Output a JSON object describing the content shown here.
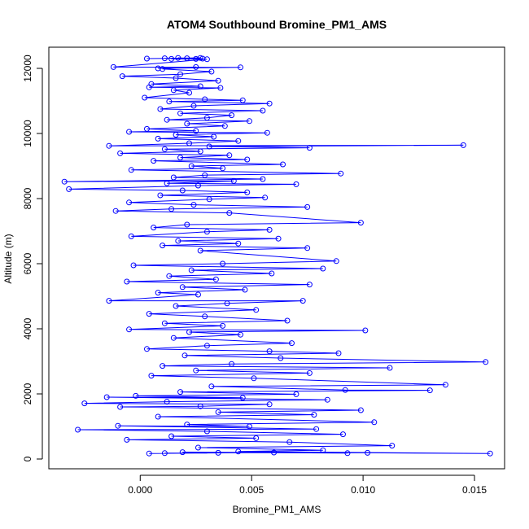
{
  "chart_data": {
    "type": "line",
    "title": "ATOM4 Southbound Bromine_PM1_AMS",
    "xlabel": "Bromine_PM1_AMS",
    "ylabel": "Altitude (m)",
    "xlim": [
      -0.0041,
      0.01635
    ],
    "ylim": [
      -300,
      12650
    ],
    "xticks": [
      0.0,
      0.005,
      0.01,
      0.015
    ],
    "xtick_labels": [
      "0.000",
      "0.005",
      "0.010",
      "0.015"
    ],
    "yticks": [
      0,
      2000,
      4000,
      6000,
      8000,
      10000,
      12000
    ],
    "ytick_labels": [
      "0",
      "2000",
      "4000",
      "6000",
      "8000",
      "10000",
      "12000"
    ],
    "grid": false,
    "legend": "none",
    "marker": "open-circle",
    "colors": {
      "series": "#0000ff",
      "axes": "#000000",
      "background": "#ffffff"
    },
    "series": [
      {
        "points": [
          [
            0.0003,
            12300
          ],
          [
            0.0027,
            12320
          ],
          [
            0.0011,
            12310
          ],
          [
            0.0025,
            12290
          ],
          [
            0.0017,
            12320
          ],
          [
            0.0028,
            12300
          ],
          [
            0.0021,
            12310
          ],
          [
            0.0014,
            12290
          ],
          [
            0.003,
            12280
          ],
          [
            -0.0012,
            12040
          ],
          [
            0.0045,
            12030
          ],
          [
            0.0008,
            12000
          ],
          [
            0.0025,
            12040
          ],
          [
            0.001,
            11980
          ],
          [
            0.0032,
            11900
          ],
          [
            0.0018,
            11820
          ],
          [
            -0.0008,
            11760
          ],
          [
            0.0016,
            11700
          ],
          [
            0.0035,
            11620
          ],
          [
            0.0005,
            11520
          ],
          [
            0.0027,
            11450
          ],
          [
            0.0004,
            11420
          ],
          [
            0.0036,
            11400
          ],
          [
            0.0015,
            11330
          ],
          [
            0.0022,
            11250
          ],
          [
            0.0002,
            11100
          ],
          [
            0.0029,
            11050
          ],
          [
            0.0046,
            11020
          ],
          [
            0.0013,
            10980
          ],
          [
            0.0058,
            10920
          ],
          [
            0.0024,
            10850
          ],
          [
            0.0009,
            10750
          ],
          [
            0.0055,
            10700
          ],
          [
            0.0018,
            10620
          ],
          [
            0.0041,
            10560
          ],
          [
            0.003,
            10480
          ],
          [
            0.0012,
            10420
          ],
          [
            0.0049,
            10380
          ],
          [
            0.0021,
            10300
          ],
          [
            0.0038,
            10230
          ],
          [
            0.0003,
            10140
          ],
          [
            0.0025,
            10080
          ],
          [
            -0.0005,
            10050
          ],
          [
            0.0057,
            10020
          ],
          [
            0.0016,
            9960
          ],
          [
            0.0033,
            9900
          ],
          [
            0.0008,
            9840
          ],
          [
            0.0044,
            9770
          ],
          [
            0.0022,
            9700
          ],
          [
            -0.0014,
            9620
          ],
          [
            0.0145,
            9640
          ],
          [
            0.0031,
            9600
          ],
          [
            0.0076,
            9560
          ],
          [
            0.0011,
            9520
          ],
          [
            0.0027,
            9450
          ],
          [
            -0.0009,
            9390
          ],
          [
            0.004,
            9330
          ],
          [
            0.0018,
            9260
          ],
          [
            0.0048,
            9200
          ],
          [
            0.0006,
            9160
          ],
          [
            0.0064,
            9050
          ],
          [
            0.0023,
            9000
          ],
          [
            0.0037,
            8930
          ],
          [
            -0.0004,
            8880
          ],
          [
            0.009,
            8770
          ],
          [
            0.0029,
            8720
          ],
          [
            0.0015,
            8650
          ],
          [
            0.0055,
            8600
          ],
          [
            -0.0034,
            8520
          ],
          [
            0.0042,
            8540
          ],
          [
            0.0012,
            8470
          ],
          [
            0.007,
            8440
          ],
          [
            0.0026,
            8400
          ],
          [
            -0.0032,
            8290
          ],
          [
            0.0019,
            8250
          ],
          [
            0.0048,
            8190
          ],
          [
            0.0009,
            8100
          ],
          [
            0.0056,
            8030
          ],
          [
            0.0031,
            7980
          ],
          [
            -0.0005,
            7880
          ],
          [
            0.0024,
            7810
          ],
          [
            0.0075,
            7740
          ],
          [
            0.0014,
            7680
          ],
          [
            -0.0011,
            7620
          ],
          [
            0.004,
            7560
          ],
          [
            0.0099,
            7260
          ],
          [
            0.0021,
            7200
          ],
          [
            0.0006,
            7110
          ],
          [
            0.0058,
            7040
          ],
          [
            0.003,
            6980
          ],
          [
            -0.0004,
            6840
          ],
          [
            0.0062,
            6770
          ],
          [
            0.0017,
            6700
          ],
          [
            0.0044,
            6620
          ],
          [
            0.001,
            6560
          ],
          [
            0.0075,
            6480
          ],
          [
            0.0027,
            6400
          ],
          [
            0.0088,
            6080
          ],
          [
            0.0037,
            6000
          ],
          [
            -0.0003,
            5950
          ],
          [
            0.0082,
            5850
          ],
          [
            0.0023,
            5800
          ],
          [
            0.0059,
            5700
          ],
          [
            0.0013,
            5620
          ],
          [
            0.0034,
            5520
          ],
          [
            -0.0006,
            5450
          ],
          [
            0.0076,
            5360
          ],
          [
            0.0019,
            5280
          ],
          [
            0.0047,
            5200
          ],
          [
            0.0008,
            5110
          ],
          [
            0.0026,
            5050
          ],
          [
            -0.0014,
            4860
          ],
          [
            0.0073,
            4860
          ],
          [
            0.0039,
            4780
          ],
          [
            0.0016,
            4700
          ],
          [
            0.0052,
            4580
          ],
          [
            0.0004,
            4460
          ],
          [
            0.0029,
            4380
          ],
          [
            0.0066,
            4250
          ],
          [
            0.0011,
            4170
          ],
          [
            0.0037,
            4090
          ],
          [
            -0.0005,
            3980
          ],
          [
            0.0101,
            3950
          ],
          [
            0.0022,
            3900
          ],
          [
            0.0045,
            3820
          ],
          [
            0.0015,
            3720
          ],
          [
            0.0068,
            3560
          ],
          [
            0.003,
            3480
          ],
          [
            0.0003,
            3380
          ],
          [
            0.0058,
            3310
          ],
          [
            0.0089,
            3250
          ],
          [
            0.002,
            3180
          ],
          [
            0.0063,
            3100
          ],
          [
            0.0155,
            2980
          ],
          [
            0.0041,
            2920
          ],
          [
            0.001,
            2860
          ],
          [
            0.0112,
            2800
          ],
          [
            0.0025,
            2720
          ],
          [
            0.0076,
            2640
          ],
          [
            0.0005,
            2560
          ],
          [
            0.0051,
            2480
          ],
          [
            0.0137,
            2280
          ],
          [
            0.0032,
            2230
          ],
          [
            0.0092,
            2120
          ],
          [
            0.013,
            2110
          ],
          [
            0.0018,
            2060
          ],
          [
            0.007,
            1990
          ],
          [
            -0.0002,
            1940
          ],
          [
            0.0046,
            1880
          ],
          [
            -0.0015,
            1900
          ],
          [
            0.0084,
            1820
          ],
          [
            0.0012,
            1760
          ],
          [
            -0.0025,
            1710
          ],
          [
            0.0058,
            1680
          ],
          [
            0.0027,
            1620
          ],
          [
            -0.0009,
            1600
          ],
          [
            0.0099,
            1500
          ],
          [
            0.0035,
            1440
          ],
          [
            0.0078,
            1360
          ],
          [
            0.0008,
            1300
          ],
          [
            0.0105,
            1130
          ],
          [
            0.0021,
            1060
          ],
          [
            0.0049,
            1000
          ],
          [
            -0.001,
            1020
          ],
          [
            0.0079,
            920
          ],
          [
            -0.0028,
            900
          ],
          [
            0.003,
            850
          ],
          [
            0.0091,
            760
          ],
          [
            0.0014,
            700
          ],
          [
            0.0052,
            640
          ],
          [
            -0.0006,
            590
          ],
          [
            0.0067,
            520
          ],
          [
            0.0113,
            410
          ],
          [
            0.0026,
            350
          ],
          [
            0.0082,
            270
          ],
          [
            0.0044,
            230
          ],
          [
            0.0157,
            170
          ],
          [
            0.0102,
            190
          ],
          [
            0.0019,
            210
          ],
          [
            0.0093,
            180
          ],
          [
            0.006,
            200
          ],
          [
            0.0004,
            170
          ],
          [
            0.0035,
            190
          ],
          [
            0.0011,
            180
          ]
        ]
      }
    ]
  }
}
